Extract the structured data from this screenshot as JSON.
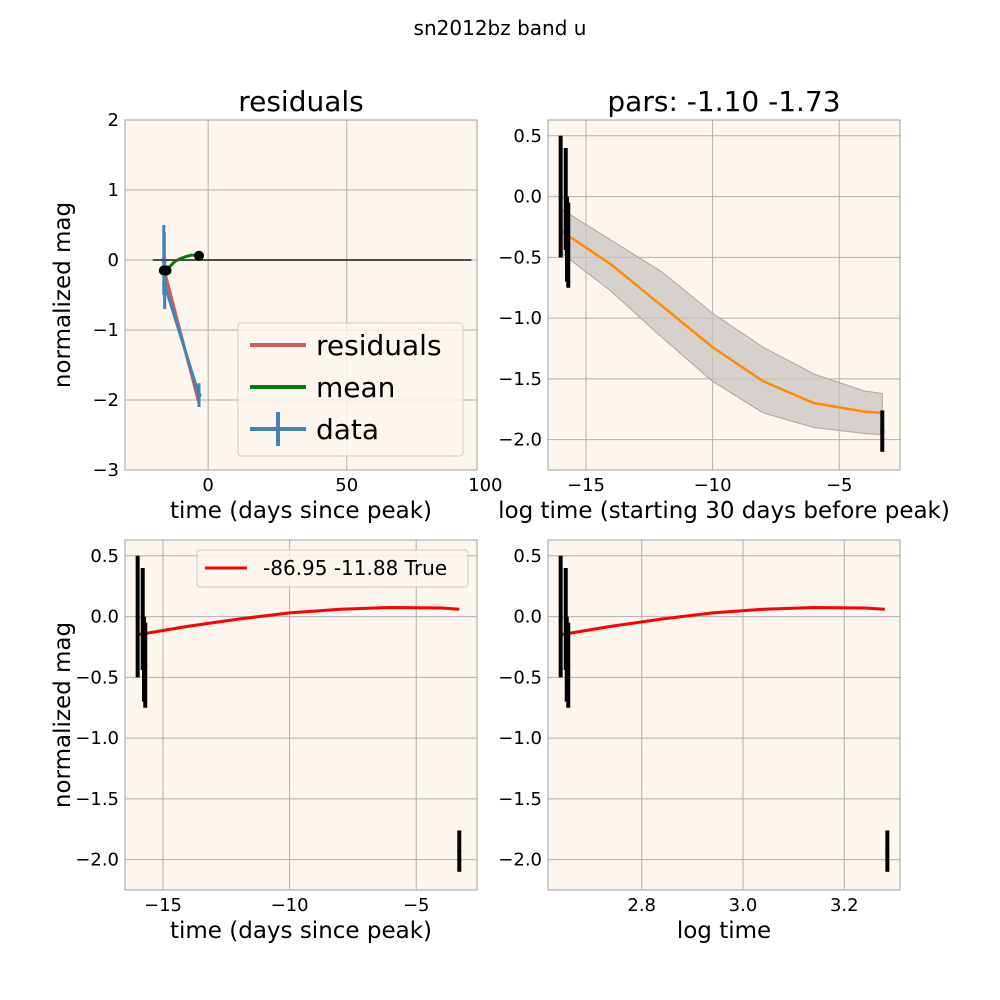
{
  "figure": {
    "title": "sn2012bz band u"
  },
  "colors": {
    "panel_bg": "#fdf6ee",
    "grid": "#b0b0b0",
    "residuals": "#cd5c5c",
    "mean": "#008000",
    "data": "#4682b4",
    "zero_line": "#4d4d4d",
    "fit": "#ff8c00",
    "band": "#c8c4c0",
    "prediction": "#ff0000",
    "points": "#000000"
  },
  "chart_data": [
    {
      "id": "residuals",
      "type": "line",
      "title": "residuals",
      "xlabel": "time (days since peak)",
      "ylabel": "normalized mag",
      "xlim": [
        -30,
        97
      ],
      "ylim": [
        -3,
        2
      ],
      "xticks": [
        0,
        50,
        100
      ],
      "xtick_labels": [
        "0",
        "50",
        "100"
      ],
      "yticks": [
        2,
        1,
        0,
        -1,
        -2,
        -3
      ],
      "ytick_labels": [
        "2",
        "1",
        "0",
        "−1",
        "−2",
        "−3"
      ],
      "grid": true,
      "legend": {
        "position": "lower-right",
        "entries": [
          {
            "label": "residuals",
            "color": "#cd5c5c",
            "marker": "line"
          },
          {
            "label": "mean",
            "color": "#008000",
            "marker": "line"
          },
          {
            "label": "data",
            "color": "#4682b4",
            "marker": "errorbar"
          }
        ]
      },
      "series": [
        {
          "name": "residuals",
          "color": "#cd5c5c",
          "kind": "line",
          "x": [
            -16,
            -15.8,
            -3.3
          ],
          "y": [
            0.3,
            -0.15,
            -2.05
          ]
        },
        {
          "name": "mean",
          "color": "#008000",
          "kind": "line",
          "x": [
            -16,
            -14,
            -12,
            -10,
            -8,
            -6,
            -4,
            -3.3
          ],
          "y": [
            -0.14,
            -0.1,
            -0.02,
            0.02,
            0.05,
            0.07,
            0.07,
            0.06
          ]
        },
        {
          "name": "data",
          "color": "#4682b4",
          "kind": "errorbar",
          "x": [
            -16,
            -15.8,
            -15.7,
            -3.3
          ],
          "y": [
            0,
            -0.02,
            -0.35,
            -1.93
          ],
          "err": [
            0.5,
            0.42,
            0.35,
            0.17
          ]
        },
        {
          "name": "",
          "color": "#4d4d4d",
          "kind": "line",
          "x": [
            -20,
            95
          ],
          "y": [
            0,
            0
          ]
        },
        {
          "name": "",
          "color": "#000000",
          "kind": "scatter",
          "x": [
            -16,
            -15,
            -3.3
          ],
          "y": [
            -0.15,
            -0.15,
            0.06
          ]
        }
      ]
    },
    {
      "id": "pars",
      "type": "line",
      "title": "pars: -1.10 -1.73",
      "xlabel": "log time (starting 30 days before peak)",
      "ylabel": "",
      "xlim": [
        -16.5,
        -2.6
      ],
      "ylim": [
        -2.25,
        0.63
      ],
      "xticks": [
        -15,
        -10,
        -5
      ],
      "xtick_labels": [
        "−15",
        "−10",
        "−5"
      ],
      "yticks": [
        0.5,
        0,
        -0.5,
        -1,
        -1.5,
        -2
      ],
      "ytick_labels": [
        "0.5",
        "0.0",
        "−0.5",
        "−1.0",
        "−1.5",
        "−2.0"
      ],
      "grid": true,
      "series": [
        {
          "name": "",
          "color": "#ff8c00",
          "kind": "band",
          "x": [
            -16,
            -14,
            -12,
            -10,
            -8,
            -6,
            -4,
            -3.3
          ],
          "y": [
            -0.28,
            -0.56,
            -0.9,
            -1.24,
            -1.52,
            -1.7,
            -1.77,
            -1.78
          ],
          "lower": [
            -0.46,
            -0.78,
            -1.16,
            -1.52,
            -1.78,
            -1.9,
            -1.95,
            -1.96
          ],
          "upper": [
            -0.1,
            -0.36,
            -0.62,
            -0.96,
            -1.24,
            -1.46,
            -1.6,
            -1.62
          ]
        },
        {
          "name": "",
          "color": "#000000",
          "kind": "errorbar",
          "x": [
            -16,
            -15.8,
            -15.75,
            -15.7,
            -3.3
          ],
          "y": [
            0,
            -0.02,
            -0.35,
            -0.4,
            -1.93
          ],
          "err": [
            0.5,
            0.42,
            0.35,
            0.35,
            0.17
          ]
        }
      ]
    },
    {
      "id": "time-fit",
      "type": "line",
      "title": "",
      "xlabel": "time (days since peak)",
      "ylabel": "normalized mag",
      "xlim": [
        -16.5,
        -2.6
      ],
      "ylim": [
        -2.25,
        0.63
      ],
      "xticks": [
        -15,
        -10,
        -5
      ],
      "xtick_labels": [
        "−15",
        "−10",
        "−5"
      ],
      "yticks": [
        0.5,
        0,
        -0.5,
        -1,
        -1.5,
        -2
      ],
      "ytick_labels": [
        "0.5",
        "0.0",
        "−0.5",
        "−1.0",
        "−1.5",
        "−2.0"
      ],
      "grid": true,
      "legend": {
        "position": "top-right",
        "entries": [
          {
            "label": "-86.95 -11.88 True",
            "color": "#ff0000",
            "marker": "line"
          }
        ]
      },
      "series": [
        {
          "name": "-86.95 -11.88 True",
          "color": "#ff0000",
          "kind": "line",
          "x": [
            -16,
            -14,
            -12,
            -10,
            -8,
            -6,
            -4,
            -3.3
          ],
          "y": [
            -0.15,
            -0.08,
            -0.02,
            0.03,
            0.06,
            0.075,
            0.07,
            0.06
          ]
        },
        {
          "name": "",
          "color": "#000000",
          "kind": "errorbar",
          "x": [
            -16,
            -15.8,
            -15.75,
            -15.7,
            -3.3
          ],
          "y": [
            0,
            -0.02,
            -0.35,
            -0.4,
            -1.93
          ],
          "err": [
            0.5,
            0.42,
            0.35,
            0.35,
            0.17
          ]
        }
      ]
    },
    {
      "id": "logtime-fit",
      "type": "line",
      "title": "",
      "xlabel": "log time",
      "ylabel": "",
      "xlim": [
        2.615,
        3.31
      ],
      "ylim": [
        -2.25,
        0.63
      ],
      "xticks": [
        2.8,
        3.0,
        3.2
      ],
      "xtick_labels": [
        "2.8",
        "3.0",
        "3.2"
      ],
      "yticks": [
        0.5,
        0,
        -0.5,
        -1,
        -1.5,
        -2
      ],
      "ytick_labels": [
        "0.5",
        "0.0",
        "−0.5",
        "−1.0",
        "−1.5",
        "−2.0"
      ],
      "grid": true,
      "series": [
        {
          "name": "",
          "color": "#ff0000",
          "kind": "line",
          "x": [
            2.64,
            2.74,
            2.84,
            2.94,
            3.04,
            3.14,
            3.24,
            3.28
          ],
          "y": [
            -0.15,
            -0.08,
            -0.02,
            0.03,
            0.06,
            0.075,
            0.07,
            0.06
          ]
        },
        {
          "name": "",
          "color": "#000000",
          "kind": "errorbar",
          "x": [
            2.64,
            2.65,
            2.652,
            2.655,
            3.285
          ],
          "y": [
            0,
            -0.02,
            -0.35,
            -0.4,
            -1.93
          ],
          "err": [
            0.5,
            0.42,
            0.35,
            0.35,
            0.17
          ]
        }
      ]
    }
  ]
}
